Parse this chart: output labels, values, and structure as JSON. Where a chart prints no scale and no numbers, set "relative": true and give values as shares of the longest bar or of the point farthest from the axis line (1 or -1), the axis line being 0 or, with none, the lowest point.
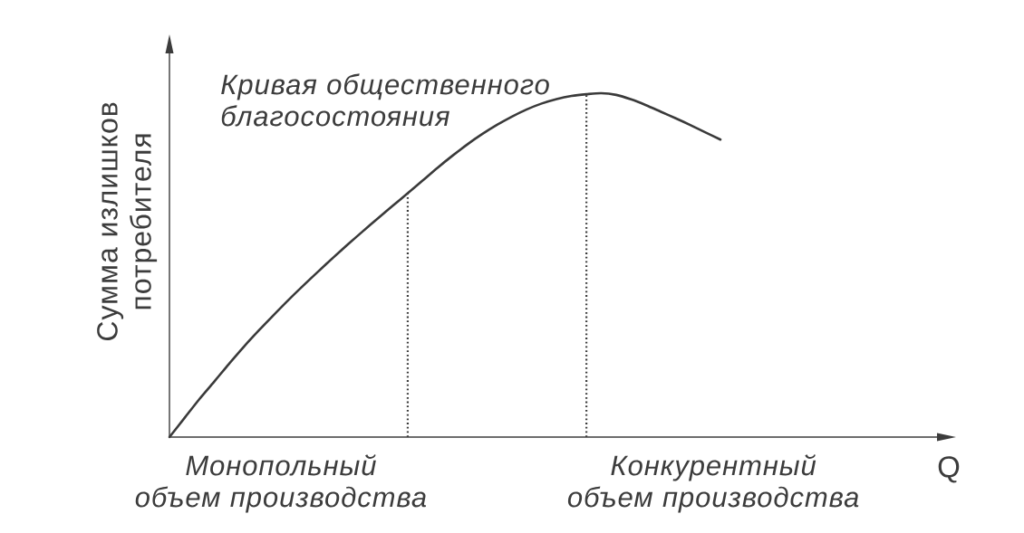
{
  "chart_data": {
    "type": "line",
    "relative": true,
    "ylabel": "Сумма излишков потребителя",
    "categories": [
      null,
      null,
      null,
      null,
      null,
      null,
      null,
      null,
      null,
      null,
      null,
      null,
      null,
      null,
      null,
      null,
      null,
      null,
      null,
      null,
      null,
      null,
      null,
      null,
      null,
      null,
      null,
      null,
      null,
      null,
      null,
      null,
      null,
      null,
      null,
      null,
      null,
      null
    ],
    "series": [
      {
        "name": "Кривая общественного благосостояния",
        "color": "#3a3a3a",
        "values": [
          0,
          0.055,
          0.11,
          0.161,
          0.213,
          0.263,
          0.31,
          0.355,
          0.399,
          0.441,
          0.482,
          0.522,
          0.561,
          0.599,
          0.636,
          0.673,
          0.709,
          0.746,
          0.783,
          0.818,
          0.851,
          0.881,
          0.908,
          0.932,
          0.953,
          0.97,
          0.983,
          0.992,
          0.997,
          1,
          0.995,
          0.982,
          0.965,
          0.946,
          0.927,
          0.907,
          0.886,
          0.865
        ]
      }
    ],
    "annotations": [
      "Монопольный объем производства",
      "Конкурентный объем производства",
      "Q"
    ],
    "marker": "none",
    "line_style": "solid",
    "legend": false
  }
}
